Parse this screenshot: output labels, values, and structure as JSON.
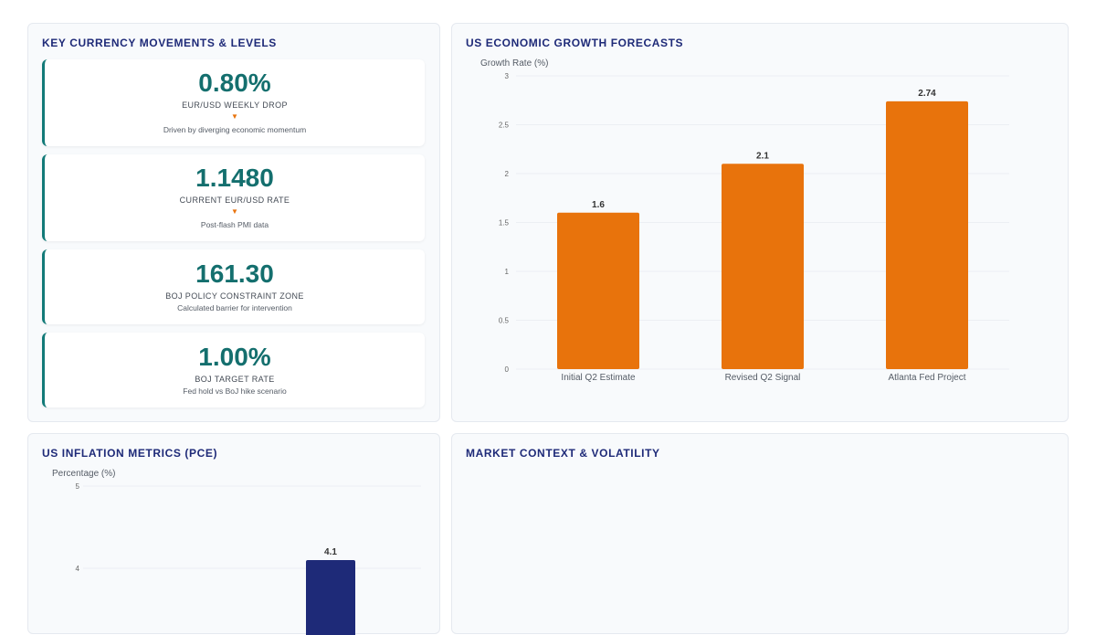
{
  "panels": {
    "currency_title": "KEY CURRENCY MOVEMENTS & LEVELS",
    "growth_title": "US ECONOMIC GROWTH FORECASTS",
    "inflation_title": "US INFLATION METRICS (PCE)",
    "market_title": "MARKET CONTEXT & VOLATILITY"
  },
  "metrics": [
    {
      "value": "0.80%",
      "label": "EUR/USD WEEKLY DROP",
      "arrow": "▼",
      "note": "Driven by diverging economic momentum"
    },
    {
      "value": "1.1480",
      "label": "CURRENT EUR/USD RATE",
      "arrow": "▼",
      "note": "Post-flash PMI data"
    },
    {
      "value": "161.30",
      "label": "BOJ POLICY CONSTRAINT ZONE",
      "note": "Calculated barrier for intervention"
    },
    {
      "value": "1.00%",
      "label": "BOJ TARGET RATE",
      "note": "Fed hold vs BoJ hike scenario"
    }
  ],
  "colors": {
    "accent_teal": "#146f6e",
    "orange": "#e8730c",
    "navy": "#1e2a78"
  },
  "chart_data": [
    {
      "type": "bar",
      "title": "US ECONOMIC GROWTH FORECASTS",
      "ylabel": "Growth Rate (%)",
      "categories": [
        "Initial Q2 Estimate",
        "Revised Q2 Signal",
        "Atlanta Fed Project"
      ],
      "values": [
        1.6,
        2.1,
        2.74
      ],
      "ylim": [
        0,
        3
      ],
      "yticks": [
        "0",
        "0.5",
        "1",
        "1.5",
        "2",
        "2.5",
        "3"
      ],
      "color": "#e8730c",
      "grid": "horizontal"
    },
    {
      "type": "bar",
      "title": "US INFLATION METRICS (PCE)",
      "ylabel": "Percentage (%)",
      "visible_yticks": [
        "5",
        "4"
      ],
      "visible_values": [
        4.1
      ],
      "color": "#1e2a78"
    }
  ]
}
